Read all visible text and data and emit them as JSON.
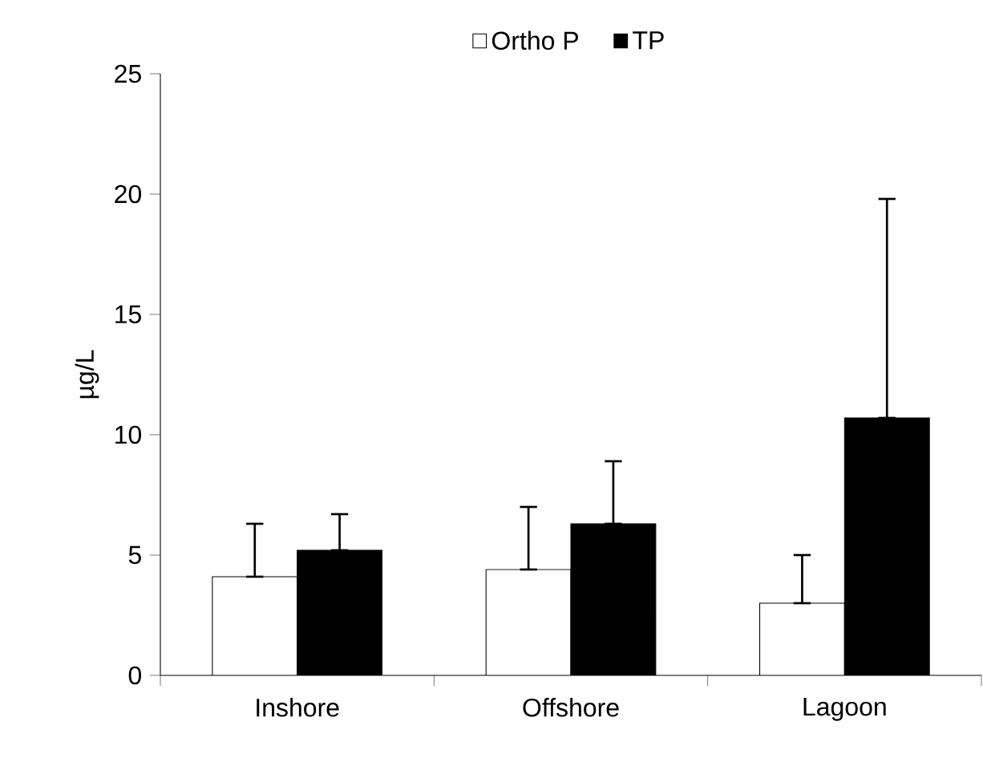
{
  "chart_data": {
    "type": "bar",
    "ylabel": "µg/L",
    "categories": [
      "Inshore",
      "Offshore",
      "Lagoon"
    ],
    "series": [
      {
        "name": "Ortho P",
        "color": "#ffffff",
        "values": [
          4.1,
          4.4,
          3.0
        ],
        "errors": [
          [
            4.1,
            6.3
          ],
          [
            4.4,
            7.0
          ],
          [
            3.0,
            5.0
          ]
        ]
      },
      {
        "name": "TP",
        "color": "#000000",
        "values": [
          5.2,
          6.3,
          10.7
        ],
        "errors": [
          [
            5.2,
            6.7
          ],
          [
            6.3,
            8.9
          ],
          [
            10.7,
            19.8
          ]
        ]
      }
    ],
    "ylim": [
      0,
      25
    ],
    "yticks": [
      0,
      5,
      10,
      15,
      20,
      25
    ],
    "legend": "top",
    "grid": false
  }
}
